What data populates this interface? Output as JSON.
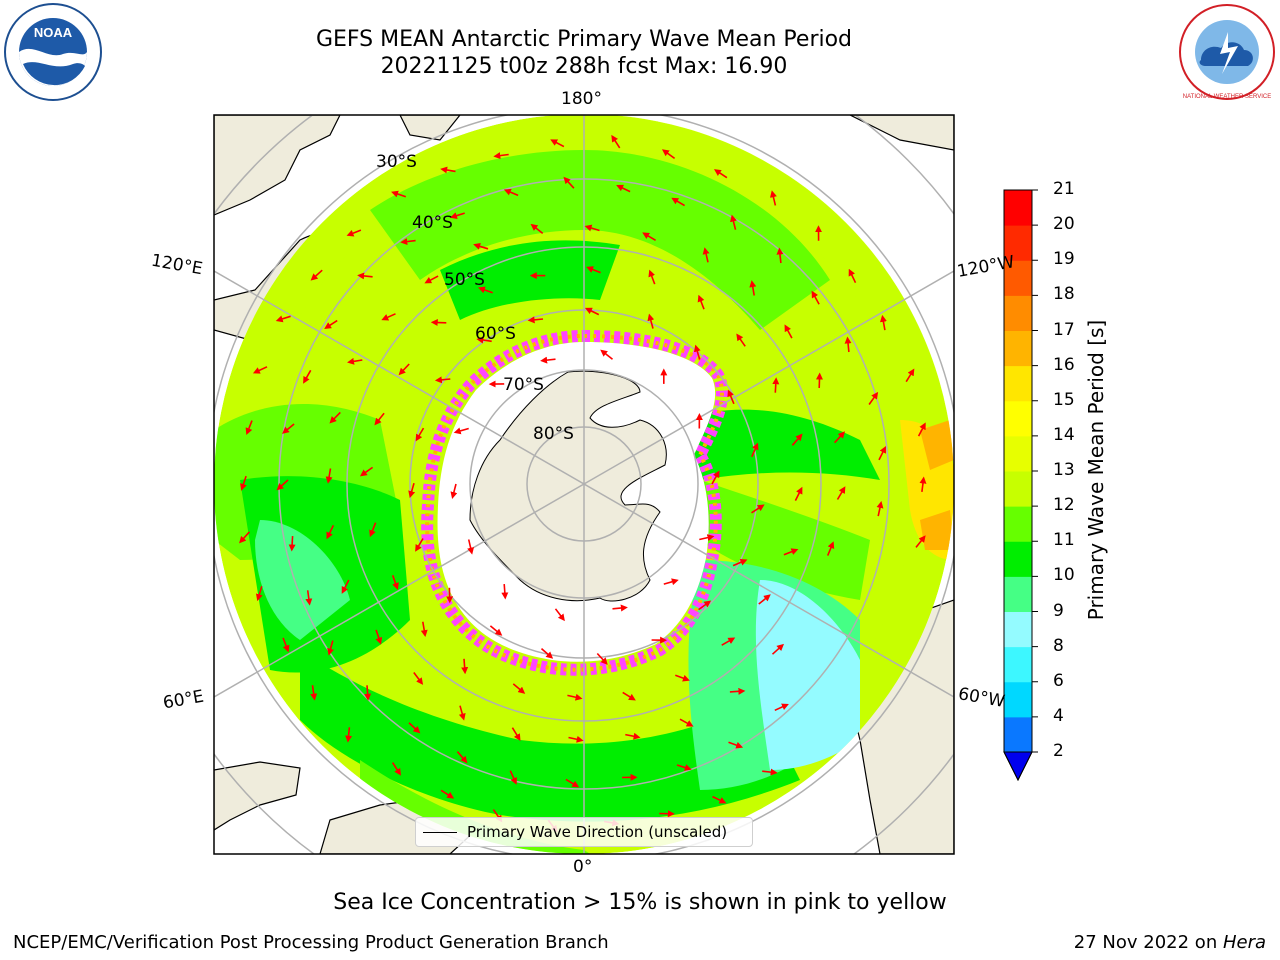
{
  "title": {
    "line1": "GEFS MEAN Antarctic Primary Wave Mean Period",
    "line2": "20221125 t00z 288h fcst   Max: 16.90"
  },
  "map_labels": {
    "lon_top": "180°",
    "lon_bottom": "0°",
    "lon_left_upper": "120°E",
    "lon_left_lower": "60°E",
    "lon_right_upper": "120°W",
    "lon_right_lower": "60°W",
    "lat": [
      "30°S",
      "40°S",
      "50°S",
      "60°S",
      "70°S",
      "80°S"
    ]
  },
  "legend": {
    "label": "Primary Wave Direction (unscaled)"
  },
  "colorbar": {
    "title": "Primary Wave Mean Period [s]",
    "ticks": [
      "2",
      "4",
      "6",
      "8",
      "9",
      "10",
      "11",
      "12",
      "13",
      "14",
      "15",
      "16",
      "17",
      "18",
      "19",
      "20",
      "21"
    ],
    "colors": [
      "#0a78ff",
      "#00d8ff",
      "#3df7ff",
      "#94fbff",
      "#45ff85",
      "#00ee00",
      "#66ff00",
      "#c7ff00",
      "#e7ff00",
      "#ffff00",
      "#ffe600",
      "#ffb400",
      "#ff8c00",
      "#ff5a00",
      "#ff2a00",
      "#ff0000"
    ],
    "extend_color": "#0000ee"
  },
  "note": "Sea Ice Concentration > 15% is shown in pink to yellow",
  "footer": {
    "credit": "NCEP/EMC/Verification Post Processing Product Generation Branch",
    "date_prefix": "27 Nov 2022 on ",
    "machine": "Hera"
  },
  "logos": {
    "left": "noaa-logo",
    "right": "nws-logo",
    "noaa_text": "NOAA",
    "nws_text": "NATIONAL WEATHER SERVICE"
  },
  "colors": {
    "land": "#efecdc",
    "ice": "#ffffff",
    "arrow": "#ff0000",
    "grid": "#b0b0b0"
  }
}
